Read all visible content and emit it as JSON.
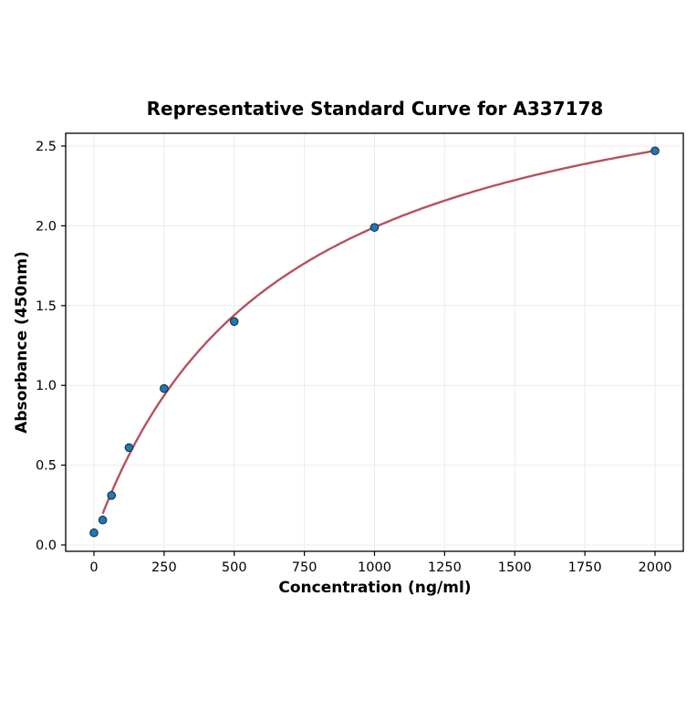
{
  "chart_data": {
    "type": "scatter",
    "title": "Representative Standard Curve for A337178",
    "xlabel": "Concentration (ng/ml)",
    "ylabel": "Absorbance (450nm)",
    "xlim": [
      -100,
      2100
    ],
    "ylim": [
      -0.05,
      2.6
    ],
    "xticks": [
      0,
      250,
      500,
      750,
      1000,
      1250,
      1500,
      1750,
      2000
    ],
    "yticks": [
      0.0,
      0.5,
      1.0,
      1.5,
      2.0,
      2.5
    ],
    "grid": true,
    "points": [
      {
        "x": 0,
        "y": 0.076
      },
      {
        "x": 31.25,
        "y": 0.156
      },
      {
        "x": 62.5,
        "y": 0.31
      },
      {
        "x": 125,
        "y": 0.61
      },
      {
        "x": 250,
        "y": 0.98
      },
      {
        "x": 500,
        "y": 1.4
      },
      {
        "x": 1000,
        "y": 1.99
      },
      {
        "x": 2000,
        "y": 2.47
      }
    ],
    "fit_curve": {
      "x_range": [
        31.25,
        2000
      ]
    },
    "colors": {
      "points": "#1f77b4",
      "point_edge": "#1a2a3a",
      "curve": "#b5525f",
      "grid": "#ebebeb"
    }
  }
}
